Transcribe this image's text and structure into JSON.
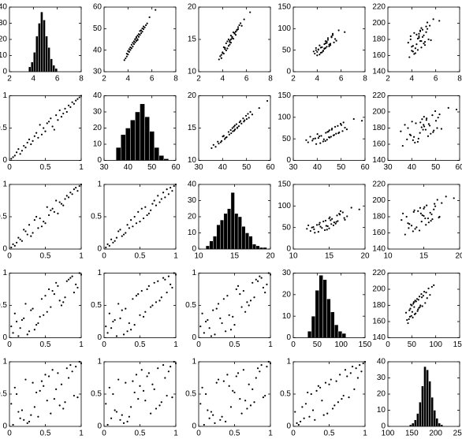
{
  "chart_data": {
    "type": "scatter-matrix",
    "color": "#000000",
    "rank_lim": [
      0,
      1
    ],
    "rank_ticks": [
      0,
      0.5,
      1
    ],
    "variables": [
      {
        "values": [
          4.1,
          4.5,
          5.2,
          4.8,
          3.9,
          4.3,
          5.6,
          4.7,
          5.0,
          4.4,
          4.9,
          3.8,
          5.3,
          4.6,
          4.2,
          5.1,
          4.0,
          4.8,
          5.8,
          4.5,
          4.7,
          3.7,
          5.4,
          4.3,
          4.9,
          5.0,
          4.1,
          4.6,
          5.2,
          4.4,
          6.3,
          4.8,
          4.2,
          5.5,
          4.6,
          3.9,
          5.1,
          4.7,
          4.0,
          5.3
        ],
        "ranks": [
          0.175,
          0.375,
          0.8,
          0.575,
          0.075,
          0.275,
          0.95,
          0.5,
          0.7,
          0.325,
          0.65,
          0.05,
          0.85,
          0.425,
          0.225,
          0.75,
          0.125,
          0.6,
          0.975,
          0.4,
          0.525,
          0.025,
          0.9,
          0.3,
          0.675,
          0.725,
          0.2,
          0.45,
          0.825,
          0.35,
          1,
          0.625,
          0.25,
          0.925,
          0.475,
          0.1,
          0.775,
          0.55,
          0.15,
          0.875
        ],
        "xlim": [
          2,
          8
        ],
        "xticks": [
          2,
          4,
          6,
          8
        ],
        "hist_bins": [
          3.6,
          3.8,
          4.0,
          4.2,
          4.4,
          4.6,
          4.8,
          5.0,
          5.2,
          5.4,
          5.6,
          5.8,
          6.0
        ],
        "hist_counts": [
          3,
          6,
          12,
          22,
          30,
          37,
          32,
          22,
          15,
          8,
          4,
          2
        ],
        "hist_ylim": [
          0,
          40
        ],
        "hist_yticks": [
          0,
          10,
          20,
          30,
          40
        ]
      },
      {
        "values": [
          39.2,
          44.1,
          48.6,
          46.8,
          37.1,
          42.5,
          52.4,
          44.3,
          48.9,
          41.7,
          47.5,
          36.2,
          49.8,
          45.2,
          40.1,
          47.9,
          39.6,
          45.1,
          55.3,
          42.8,
          45.8,
          35.4,
          50.6,
          40.9,
          46.2,
          47.1,
          40.5,
          43.6,
          50.1,
          43.4,
          58.7,
          44.7,
          41.3,
          51.6,
          44.9,
          38.4,
          49.2,
          46.1,
          38.0,
          51.0
        ],
        "ranks": [
          0.15,
          0.425,
          0.75,
          0.65,
          0.075,
          0.325,
          0.95,
          0.45,
          0.775,
          0.3,
          0.7,
          0.05,
          0.825,
          0.55,
          0.2,
          0.725,
          0.175,
          0.525,
          0.975,
          0.35,
          0.575,
          0.025,
          0.875,
          0.25,
          0.625,
          0.675,
          0.225,
          0.4,
          0.85,
          0.375,
          1,
          0.475,
          0.275,
          0.925,
          0.5,
          0.125,
          0.8,
          0.6,
          0.1,
          0.9
        ],
        "xlim": [
          30,
          60
        ],
        "xticks": [
          30,
          40,
          50,
          60
        ],
        "ylim": [
          30,
          60
        ],
        "yticks": [
          30,
          40,
          50,
          60
        ],
        "hist_bins": [
          35,
          37,
          39,
          41,
          43,
          45,
          47,
          49,
          51,
          53,
          55,
          57
        ],
        "hist_counts": [
          8,
          16,
          20,
          25,
          30,
          35,
          27,
          18,
          8,
          3,
          1
        ],
        "hist_ylim": [
          0,
          40
        ],
        "hist_yticks": [
          0,
          10,
          20,
          30,
          40
        ]
      },
      {
        "values": [
          12.8,
          15.0,
          16.5,
          15.3,
          12.1,
          14.4,
          17.1,
          14.5,
          16.0,
          13.6,
          16.1,
          12.4,
          16.9,
          14.8,
          13.7,
          15.7,
          13.0,
          15.4,
          18.1,
          14.0,
          15.6,
          11.9,
          17.2,
          13.3,
          15.1,
          15.9,
          13.8,
          14.2,
          16.4,
          14.7,
          19.2,
          15.2,
          13.5,
          17.5,
          14.6,
          12.6,
          16.2,
          15.0,
          12.9,
          16.6
        ],
        "ranks": [
          0.125,
          0.5,
          0.825,
          0.6,
          0.05,
          0.375,
          0.9,
          0.4,
          0.725,
          0.25,
          0.75,
          0.075,
          0.875,
          0.475,
          0.275,
          0.675,
          0.175,
          0.625,
          0.975,
          0.325,
          0.65,
          0.025,
          0.925,
          0.2,
          0.55,
          0.7,
          0.3,
          0.35,
          0.8,
          0.45,
          1,
          0.575,
          0.225,
          0.95,
          0.425,
          0.1,
          0.775,
          0.525,
          0.15,
          0.85
        ],
        "xlim": [
          10,
          20
        ],
        "xticks": [
          10,
          15,
          20
        ],
        "ylim": [
          10,
          20
        ],
        "yticks": [
          10,
          15,
          20
        ],
        "hist_bins": [
          11,
          11.5,
          12,
          12.5,
          13,
          13.5,
          14,
          14.5,
          15,
          15.5,
          16,
          16.5,
          17,
          17.5,
          18,
          18.5,
          19,
          19.5
        ],
        "hist_counts": [
          2,
          5,
          8,
          15,
          18,
          22,
          25,
          35,
          22,
          20,
          14,
          10,
          8,
          3,
          2,
          1,
          1
        ],
        "hist_ylim": [
          0,
          40
        ],
        "hist_yticks": [
          0,
          10,
          20,
          30,
          40
        ]
      },
      {
        "values": [
          51,
          48,
          80,
          58,
          55,
          44,
          72,
          66,
          63,
          57,
          78,
          42,
          85,
          53,
          61,
          62,
          38,
          70,
          96,
          49,
          55,
          47,
          68,
          56,
          74,
          59,
          52,
          64,
          82,
          45,
          92,
          67,
          40,
          76,
          54,
          50,
          65,
          71,
          46,
          88
        ],
        "ranks": [
          0.275,
          0.2,
          0.875,
          0.475,
          0.375,
          0.1,
          0.775,
          0.65,
          0.575,
          0.45,
          0.85,
          0.075,
          0.925,
          0.325,
          0.525,
          0.55,
          0.025,
          0.725,
          1,
          0.225,
          0.4,
          0.175,
          0.7,
          0.425,
          0.8,
          0.5,
          0.3,
          0.6,
          0.9,
          0.125,
          0.975,
          0.675,
          0.05,
          0.825,
          0.35,
          0.25,
          0.625,
          0.75,
          0.15,
          0.95
        ],
        "xlim": [
          0,
          150
        ],
        "xticks": [
          0,
          50,
          100,
          150
        ],
        "ylim": [
          0,
          150
        ],
        "yticks": [
          0,
          50,
          100,
          150
        ],
        "hist_bins": [
          30,
          38,
          46,
          54,
          62,
          70,
          78,
          86,
          94,
          102,
          110
        ],
        "hist_counts": [
          3,
          10,
          22,
          29,
          27,
          18,
          12,
          6,
          3,
          2
        ],
        "hist_ylim": [
          0,
          30
        ],
        "hist_yticks": [
          0,
          10,
          20,
          30
        ]
      },
      {
        "values": [
          172,
          181,
          196,
          170,
          184,
          163,
          179,
          191,
          175,
          186,
          183,
          158,
          201,
          182,
          188,
          173,
          171,
          194,
          205,
          167,
          178,
          176,
          180,
          169,
          192,
          185,
          165,
          187,
          189,
          174,
          203,
          178,
          162,
          197,
          184,
          180,
          177,
          190,
          166,
          193
        ],
        "ranks": [
          0.25,
          0.525,
          0.9,
          0.2,
          0.6,
          0.075,
          0.45,
          0.8,
          0.325,
          0.675,
          0.575,
          0.025,
          0.95,
          0.55,
          0.725,
          0.275,
          0.225,
          0.875,
          1,
          0.15,
          0.4,
          0.35,
          0.475,
          0.175,
          0.825,
          0.65,
          0.1,
          0.7,
          0.75,
          0.3,
          0.975,
          0.425,
          0.05,
          0.925,
          0.625,
          0.5,
          0.375,
          0.775,
          0.125,
          0.85
        ],
        "xlim": [
          100,
          250
        ],
        "xticks": [
          100,
          150,
          200,
          250
        ],
        "ylim": [
          140,
          220
        ],
        "yticks": [
          140,
          160,
          180,
          200,
          220
        ],
        "hist_bins": [
          145,
          150,
          155,
          160,
          165,
          170,
          175,
          180,
          185,
          190,
          195,
          200,
          205,
          210,
          215
        ],
        "hist_counts": [
          1,
          2,
          4,
          8,
          15,
          25,
          37,
          35,
          28,
          18,
          10,
          5,
          2,
          1
        ],
        "hist_ylim": [
          0,
          40
        ],
        "hist_yticks": [
          0,
          10,
          20,
          30,
          40
        ]
      }
    ]
  }
}
